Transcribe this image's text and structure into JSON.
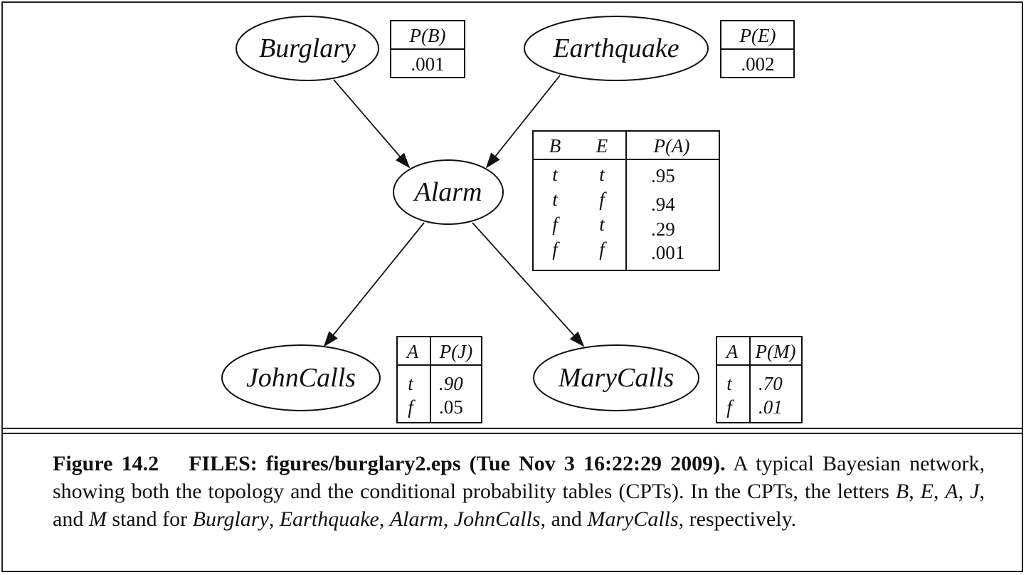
{
  "nodes": {
    "burglary": "Burglary",
    "earthquake": "Earthquake",
    "alarm": "Alarm",
    "johncalls": "JohnCalls",
    "marycalls": "MaryCalls"
  },
  "cpt_b": {
    "header": "P(B)",
    "value": ".001"
  },
  "cpt_e": {
    "header": "P(E)",
    "value": ".002"
  },
  "cpt_a": {
    "headers": [
      "B",
      "E",
      "P(A)"
    ],
    "rows": [
      [
        "t",
        "t",
        ".95"
      ],
      [
        "t",
        "f",
        ".94"
      ],
      [
        "f",
        "t",
        ".29"
      ],
      [
        "f",
        "f",
        ".001"
      ]
    ]
  },
  "cpt_j": {
    "headers": [
      "A",
      "P(J)"
    ],
    "rows": [
      [
        "t",
        ".90"
      ],
      [
        "f",
        ".05"
      ]
    ]
  },
  "cpt_m": {
    "headers": [
      "A",
      "P(M)"
    ],
    "rows": [
      [
        "t",
        ".70"
      ],
      [
        "f",
        ".01"
      ]
    ]
  },
  "caption": {
    "label": "Figure 14.2",
    "files": "FILES: figures/burglary2.eps (Tue Nov 3 16:22:29 2009).",
    "text_1": "A typical Bayesian network, showing both the topology and the conditional probability tables (CPTs). In the CPTs, the letters",
    "sym_b": "B",
    "sep_1": ", ",
    "sym_e": "E",
    "sep_2": ", ",
    "sym_a": "A",
    "sep_3": ", ",
    "sym_j": "J",
    "sep_4": ", and ",
    "sym_m": "M",
    "text_2": " stand for ",
    "name_b": "Burglary",
    "sep_5": ", ",
    "name_e": "Earthquake",
    "sep_6": ", ",
    "name_a": "Alarm",
    "sep_7": ", ",
    "name_j": "JohnCalls",
    "sep_8": ", and ",
    "name_m": "MaryCalls",
    "text_3": ", respectively."
  }
}
